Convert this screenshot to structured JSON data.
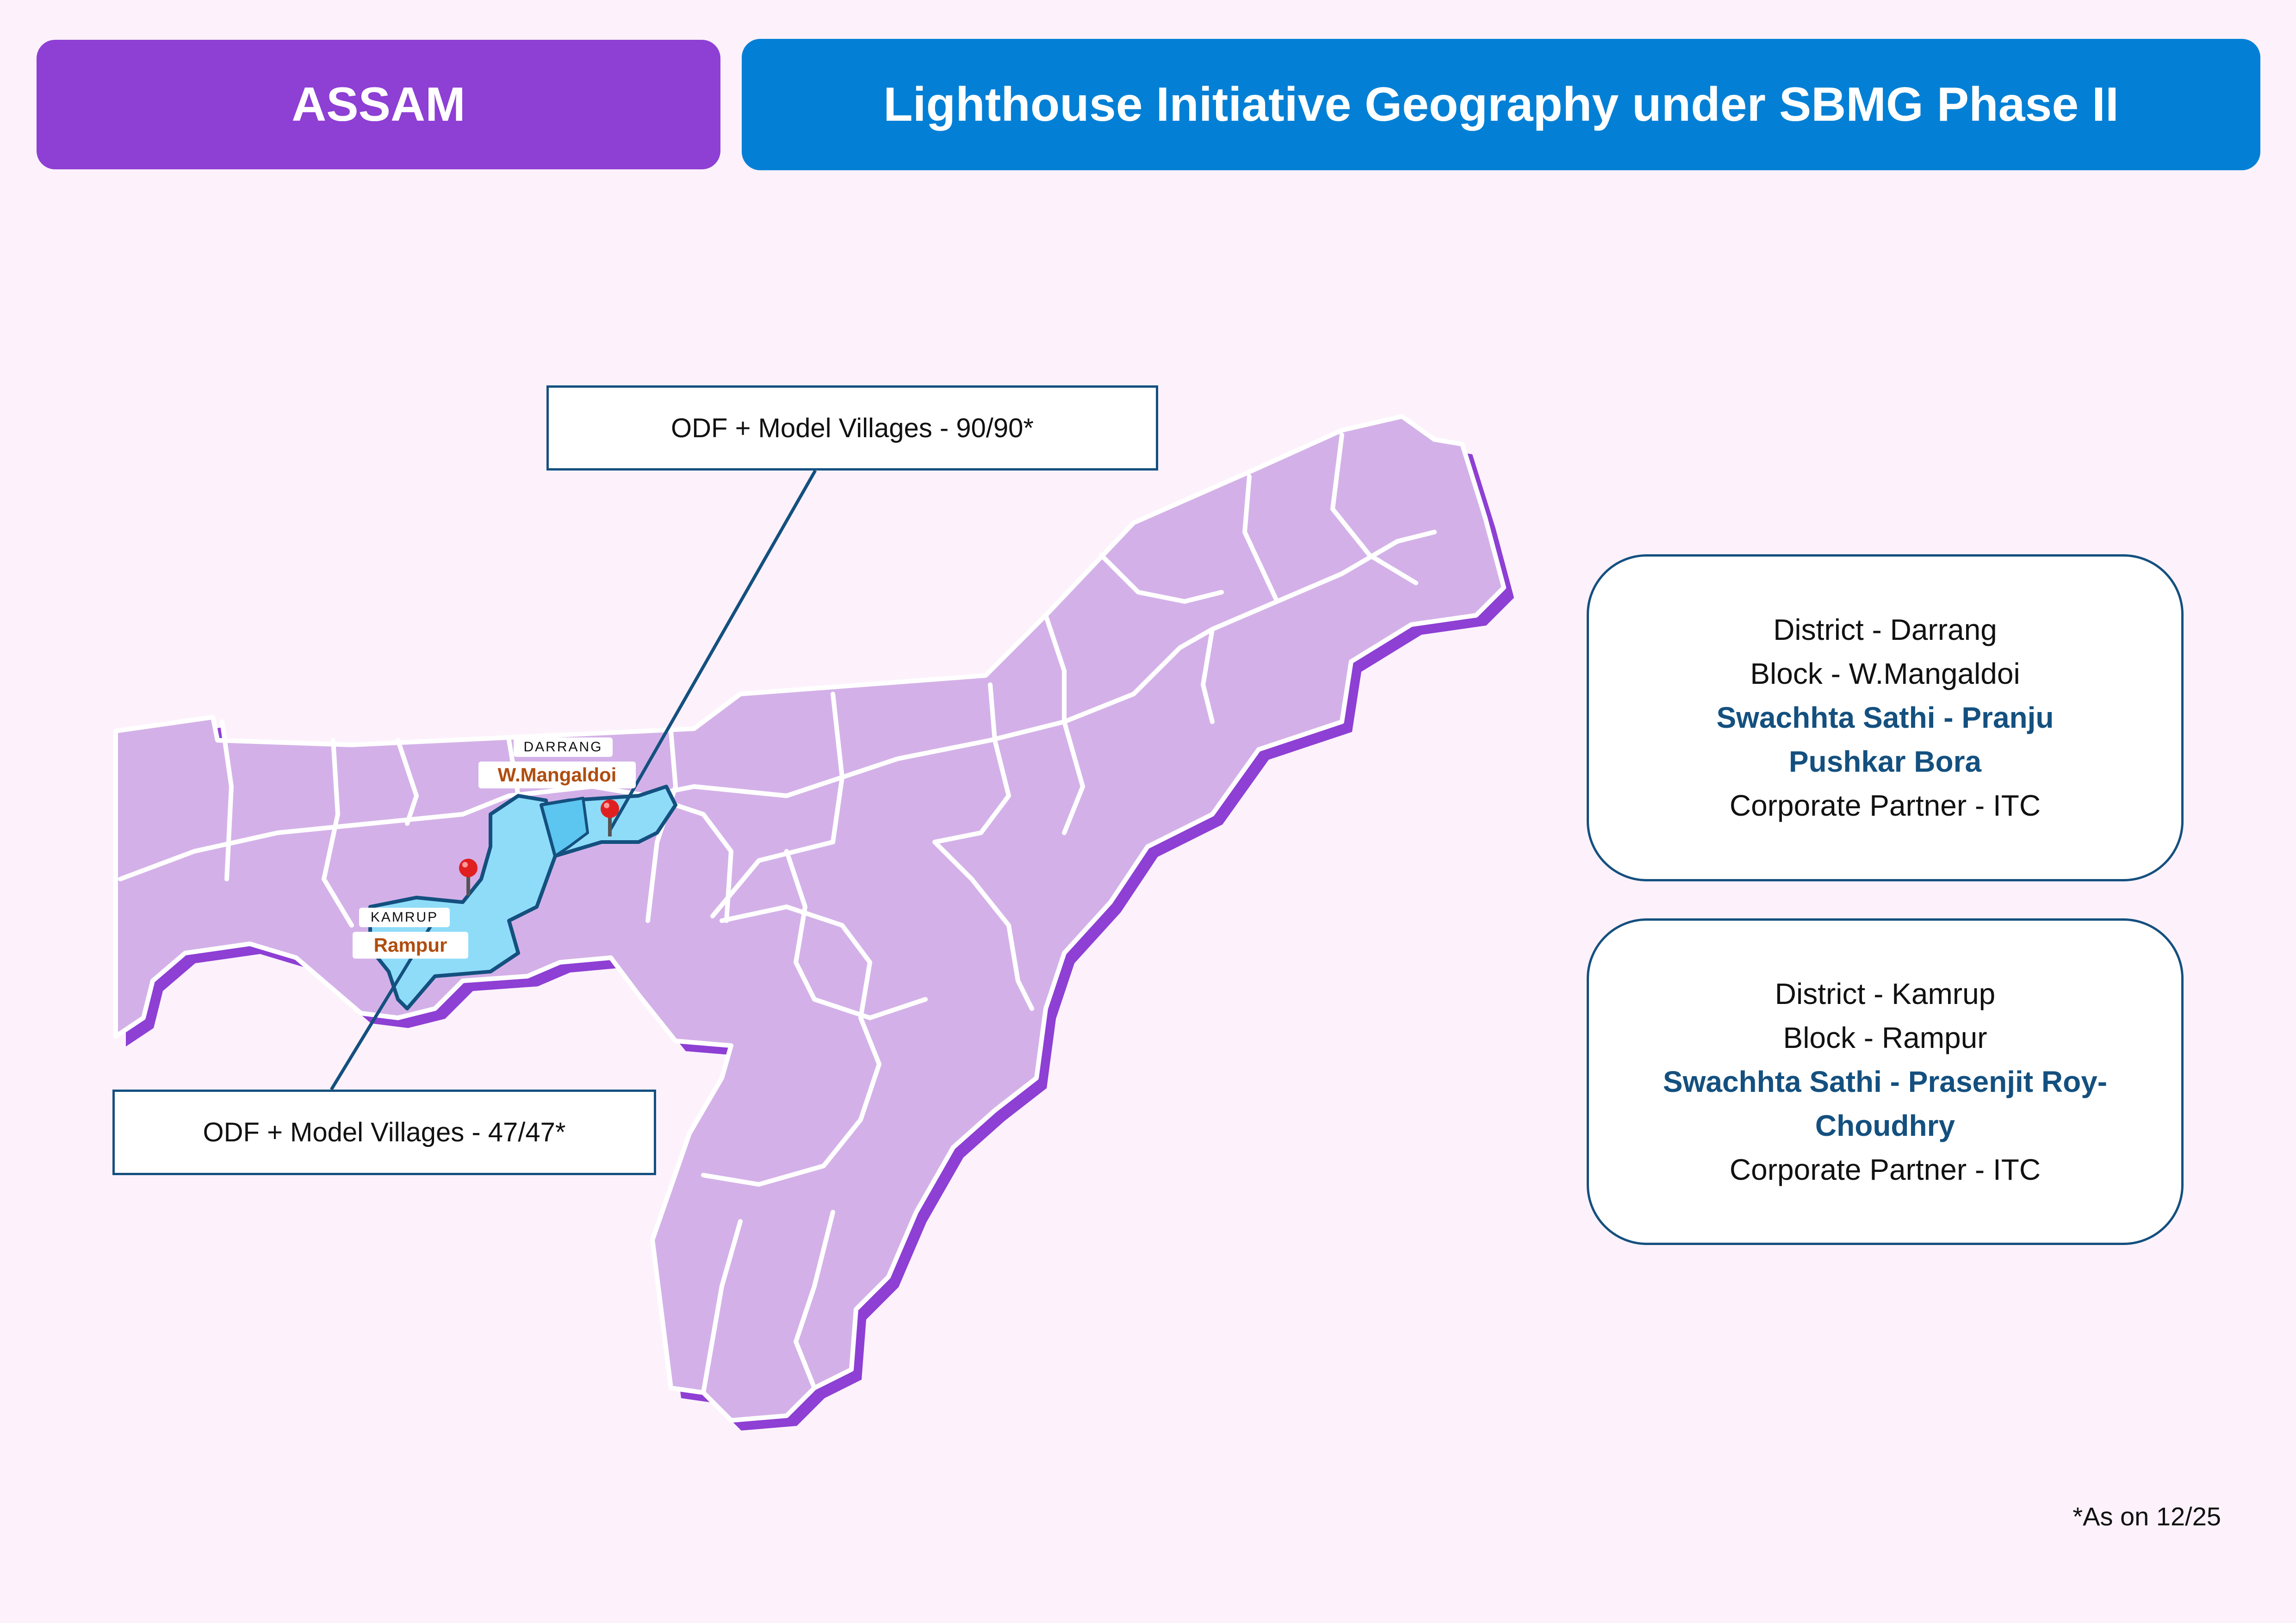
{
  "header": {
    "state": "ASSAM",
    "title": "Lighthouse Initiative Geography under SBMG Phase II"
  },
  "map": {
    "darrang": {
      "district_label": "DARRANG",
      "block_label": "W.Mangaldoi",
      "callout": "ODF + Model Villages - 90/90*"
    },
    "kamrup": {
      "district_label": "KAMRUP",
      "block_label": "Rampur",
      "callout": "ODF + Model Villages - 47/47*"
    },
    "colors": {
      "state_fill": "#d3b1e8",
      "state_shadow": "#8e3fd4",
      "highlight_fill": "#8fdcf8",
      "highlight_border": "#14507f",
      "pin": "#e02020"
    }
  },
  "cards": {
    "darrang": {
      "district": "District - Darrang",
      "block": "Block - W.Mangaldoi",
      "sathi_line1": "Swachhta Sathi - Pranju",
      "sathi_line2": "Pushkar Bora",
      "partner": "Corporate Partner - ITC"
    },
    "kamrup": {
      "district": "District - Kamrup",
      "block": "Block - Rampur",
      "sathi_line1": "Swachhta Sathi - Prasenjit Roy-",
      "sathi_line2": "Choudhry",
      "partner": "Corporate Partner - ITC"
    }
  },
  "footnote": "*As on 12/25"
}
